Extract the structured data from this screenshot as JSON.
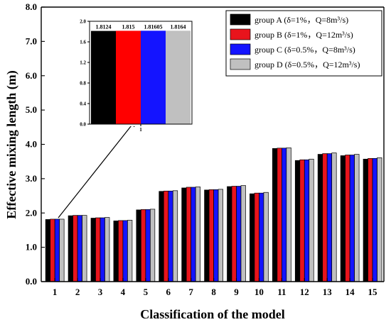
{
  "chart_data": [
    {
      "type": "bar",
      "title": "",
      "xlabel": "Classification of the model",
      "ylabel": "Effective mixing length (m)",
      "ylim": [
        0.0,
        8.0
      ],
      "yticks": [
        "0.0",
        "1.0",
        "2.0",
        "3.0",
        "4.0",
        "5.0",
        "6.0",
        "7.0",
        "8.0"
      ],
      "categories": [
        "1",
        "2",
        "3",
        "4",
        "5",
        "6",
        "7",
        "8",
        "9",
        "10",
        "11",
        "12",
        "13",
        "14",
        "15"
      ],
      "legend_position": "top-right",
      "series": [
        {
          "name": "group A (δ=1%，Q=8m³/s)",
          "color": "#000000",
          "values": [
            1.81,
            1.92,
            1.85,
            1.77,
            2.09,
            2.63,
            2.73,
            2.67,
            2.77,
            2.56,
            3.88,
            3.53,
            3.71,
            3.67,
            3.57
          ]
        },
        {
          "name": "group B (δ=1%，Q=12m³/s)",
          "color": "#e8141c",
          "values": [
            1.82,
            1.93,
            1.86,
            1.78,
            2.1,
            2.64,
            2.75,
            2.68,
            2.78,
            2.58,
            3.89,
            3.55,
            3.73,
            3.69,
            3.59
          ]
        },
        {
          "name": "group C (δ=0.5%，Q=8m³/s)",
          "color": "#1414ff",
          "values": [
            1.82,
            1.93,
            1.86,
            1.78,
            2.1,
            2.64,
            2.75,
            2.68,
            2.78,
            2.58,
            3.89,
            3.55,
            3.73,
            3.69,
            3.59
          ]
        },
        {
          "name": "group D (δ=0.5%，Q=12m³/s)",
          "color": "#c0c0c0",
          "values": [
            1.82,
            1.93,
            1.87,
            1.79,
            2.11,
            2.65,
            2.76,
            2.69,
            2.8,
            2.6,
            3.9,
            3.57,
            3.75,
            3.71,
            3.61
          ]
        }
      ]
    },
    {
      "type": "bar",
      "title": "",
      "ylim": [
        0.0,
        2.0
      ],
      "yticks": [
        "0.0",
        "0.4",
        "0.8",
        "1.2",
        "1.6",
        "2.0"
      ],
      "categories": [
        "1"
      ],
      "series": [
        {
          "name": "group A",
          "color": "#000000",
          "values": [
            1.8124
          ],
          "label": "1.8124"
        },
        {
          "name": "group B",
          "color": "#ff0000",
          "values": [
            1.815
          ],
          "label": "1.815"
        },
        {
          "name": "group C",
          "color": "#1414ff",
          "values": [
            1.81605
          ],
          "label": "1.81605"
        },
        {
          "name": "group D",
          "color": "#c0c0c0",
          "values": [
            1.8164
          ],
          "label": "1.8164"
        }
      ]
    }
  ]
}
